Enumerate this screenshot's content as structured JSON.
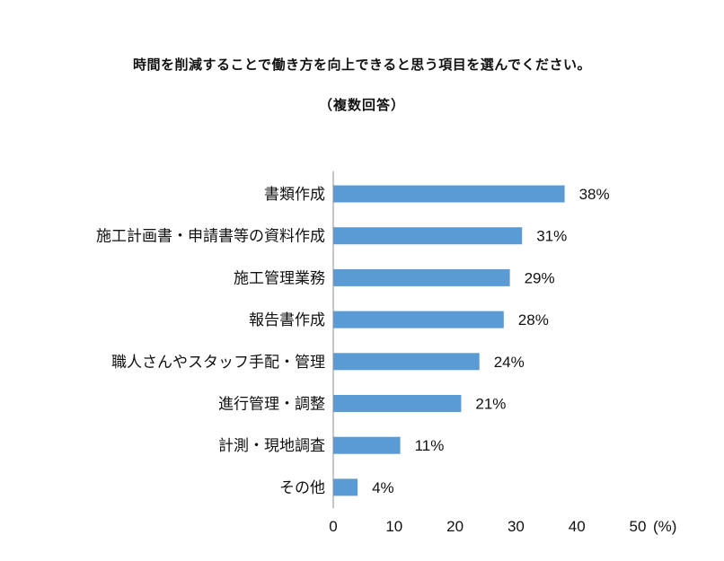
{
  "chart_data": {
    "type": "bar",
    "orientation": "horizontal",
    "title": "時間を削減することで働き方を向上できると思う項目を選んでください。",
    "subtitle": "（複数回答）",
    "categories": [
      "書類作成",
      "施工計画書・申請書等の資料作成",
      "施工管理業務",
      "報告書作成",
      "職人さんやスタッフ手配・管理",
      "進行管理・調整",
      "計測・現地調査",
      "その他"
    ],
    "values": [
      38,
      31,
      29,
      28,
      24,
      21,
      11,
      4
    ],
    "value_labels": [
      "38%",
      "31%",
      "29%",
      "28%",
      "24%",
      "21%",
      "11%",
      "4%"
    ],
    "xlim": [
      0,
      50
    ],
    "xticks": [
      "0",
      "10",
      "20",
      "30",
      "40",
      "50"
    ],
    "x_unit": "(%)",
    "bar_color": "#5b9bd5",
    "grid": false,
    "legend": "none"
  }
}
